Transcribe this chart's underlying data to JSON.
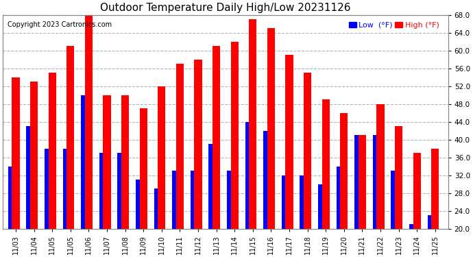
{
  "title": "Outdoor Temperature Daily High/Low 20231126",
  "copyright": "Copyright 2023 Cartronics.com",
  "dates": [
    "11/03",
    "11/04",
    "11/05",
    "11/05",
    "11/06",
    "11/07",
    "11/08",
    "11/09",
    "11/10",
    "11/11",
    "11/12",
    "11/13",
    "11/14",
    "11/15",
    "11/16",
    "11/17",
    "11/18",
    "11/19",
    "11/20",
    "11/21",
    "11/22",
    "11/23",
    "11/24",
    "11/25"
  ],
  "high": [
    54,
    53,
    55,
    61,
    68,
    50,
    50,
    47,
    52,
    57,
    58,
    61,
    62,
    67,
    65,
    59,
    55,
    49,
    46,
    41,
    48,
    43,
    37,
    38
  ],
  "low": [
    34,
    43,
    38,
    38,
    50,
    37,
    37,
    31,
    29,
    33,
    33,
    39,
    33,
    44,
    42,
    32,
    32,
    30,
    34,
    41,
    41,
    33,
    21,
    23
  ],
  "high_color": "#ff0000",
  "low_color": "#0000ff",
  "bg_color": "#ffffff",
  "plot_bg_color": "#ffffff",
  "grid_color": "#aaaaaa",
  "ylim_min": 20,
  "ylim_max": 68,
  "yticks": [
    20.0,
    24.0,
    28.0,
    32.0,
    36.0,
    40.0,
    44.0,
    48.0,
    52.0,
    56.0,
    60.0,
    64.0,
    68.0
  ],
  "title_fontsize": 11,
  "tick_fontsize": 7,
  "legend_fontsize": 8,
  "copyright_fontsize": 7
}
